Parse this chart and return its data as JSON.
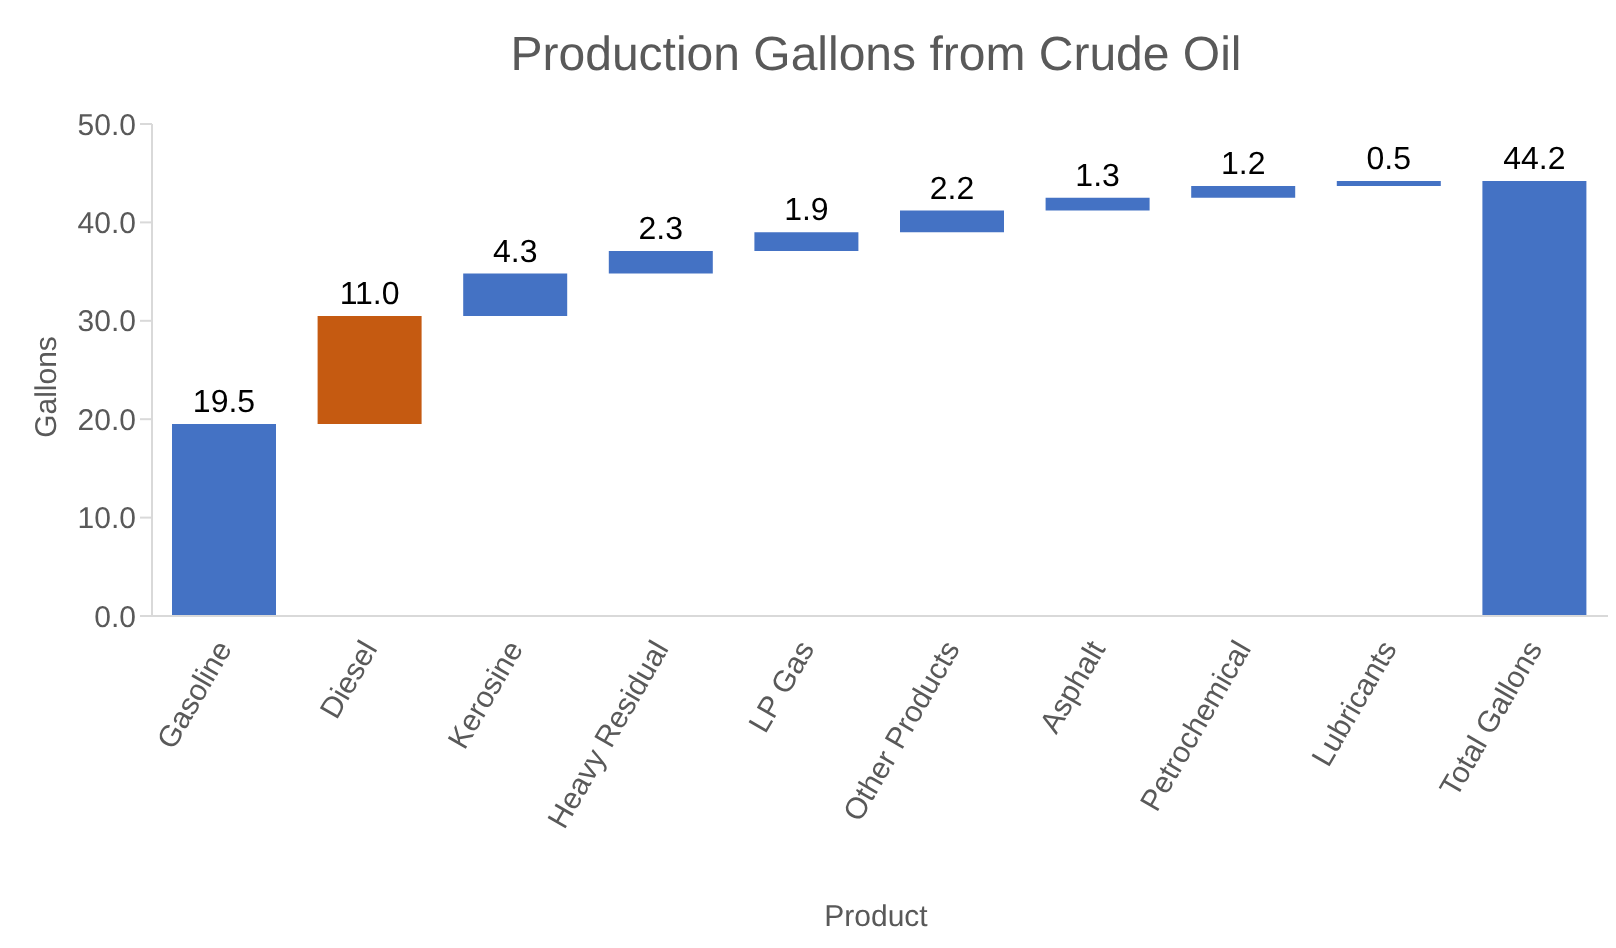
{
  "chart_data": {
    "type": "bar",
    "title": "Production Gallons from Crude Oil",
    "xlabel": "Product",
    "ylabel": "Gallons",
    "categories": [
      "Gasoline",
      "Diesel",
      "Kerosine",
      "Heavy Residual",
      "LP Gas",
      "Other Products",
      "Asphalt",
      "Petrochemical",
      "Lubricants",
      "Total Gallons"
    ],
    "values": [
      19.5,
      11.0,
      4.3,
      2.3,
      1.9,
      2.2,
      1.3,
      1.2,
      0.5,
      44.2
    ],
    "base": [
      0,
      19.5,
      30.5,
      34.8,
      37.1,
      39.0,
      41.2,
      42.5,
      43.7,
      0
    ],
    "colors": [
      "#4472c4",
      "#c55a11",
      "#4472c4",
      "#4472c4",
      "#4472c4",
      "#4472c4",
      "#4472c4",
      "#4472c4",
      "#4472c4",
      "#4472c4"
    ],
    "value_labels": [
      "19.5",
      "11.0",
      "4.3",
      "2.3",
      "1.9",
      "2.2",
      "1.3",
      "1.2",
      "0.5",
      "44.2"
    ],
    "ylim": [
      0,
      50
    ],
    "yticks": [
      {
        "value": 0,
        "label": "0.0"
      },
      {
        "value": 10,
        "label": "10.0"
      },
      {
        "value": 20,
        "label": "20.0"
      },
      {
        "value": 30,
        "label": "30.0"
      },
      {
        "value": 40,
        "label": "40.0"
      },
      {
        "value": 50,
        "label": "50.0"
      }
    ],
    "grid": false,
    "legend": false
  }
}
